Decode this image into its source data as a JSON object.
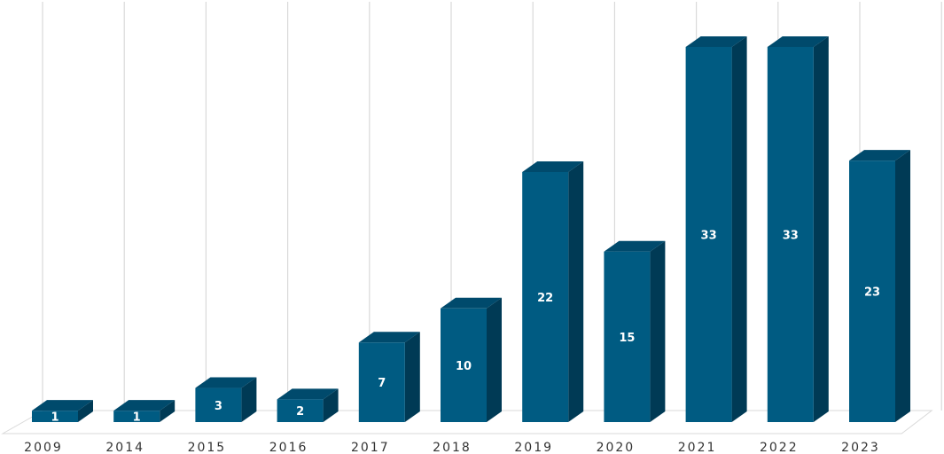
{
  "chart_data": {
    "type": "bar",
    "categories": [
      "2009",
      "2014",
      "2015",
      "2016",
      "2017",
      "2018",
      "2019",
      "2020",
      "2021",
      "2022",
      "2023"
    ],
    "values": [
      1,
      1,
      3,
      2,
      7,
      10,
      22,
      15,
      33,
      33,
      23
    ],
    "title": "",
    "xlabel": "",
    "ylabel": "",
    "ylim": [
      0,
      33
    ],
    "grid": "vertical",
    "style": "3d",
    "colors": {
      "front": "#005B82",
      "side": "#003A55",
      "top": "#004A6C",
      "grid": "#D9D9D9",
      "label": "#FFFFFF",
      "tick": "#333333"
    }
  }
}
